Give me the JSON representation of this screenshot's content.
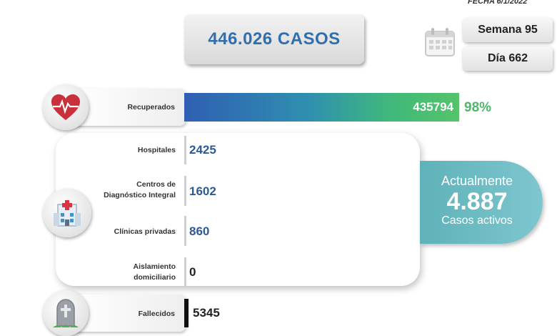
{
  "fecha": "FECHA 6/1/2022",
  "total_casos": "446.026 CASOS",
  "semana": "Semana 95",
  "dia": "Día 662",
  "recuperados": {
    "label": "Recuperados",
    "value": "435794",
    "percent": "98%"
  },
  "hospitales": {
    "label": "Hospitales",
    "value": "2425"
  },
  "cdi": {
    "label_line1": "Centros de",
    "label_line2": "Diagnóstico Integral",
    "value": "1602"
  },
  "clinicas": {
    "label": "Clínicas privadas",
    "value": "860"
  },
  "aislamiento": {
    "label_line1": "Aislamiento",
    "label_line2": "domiciliario",
    "value": "0"
  },
  "activos": {
    "line1": "Actualmente",
    "value": "4.887",
    "line3": "Casos activos"
  },
  "fallecidos": {
    "label": "Fallecidos",
    "value": "5345"
  },
  "icons": [
    "heart-pulse-icon",
    "hospital-icon",
    "tombstone-icon",
    "calendar-icon"
  ],
  "colors": {
    "primary_blue": "#2f6fb0",
    "green": "#4cb86a",
    "teal": "#5eb2b8"
  }
}
